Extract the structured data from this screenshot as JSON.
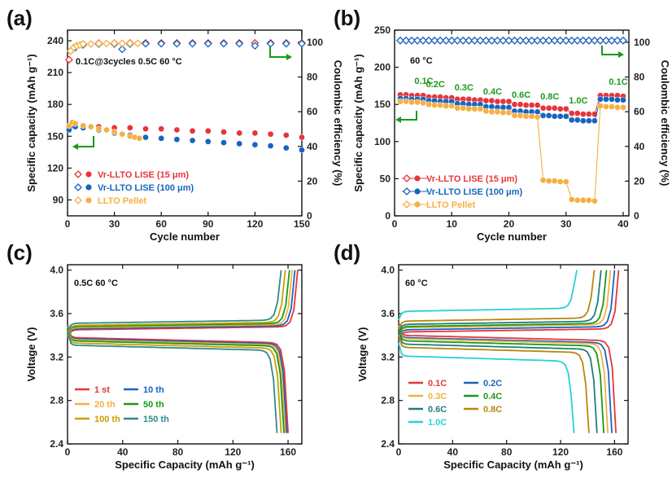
{
  "figure": {
    "colors": {
      "red": "#e8343b",
      "blue": "#1565c0",
      "orange": "#f5b041",
      "green": "#1a9a1a",
      "teal": "#2e8b8b",
      "gold": "#c8a000",
      "cyan": "#29d0d8",
      "olive": "#b8860b",
      "dteal": "#1e7f7f"
    }
  },
  "chart_data": [
    {
      "id": "a",
      "panel_label": "(a)",
      "type": "scatter",
      "xlabel": "Cycle number",
      "ylabel": "Specific capacity (mAh g⁻¹)",
      "y2label": "Coulombic efficiency (%)",
      "xlim": [
        0,
        150
      ],
      "ylim": [
        75,
        250
      ],
      "y2lim": [
        0,
        107
      ],
      "xticks": [
        0,
        30,
        60,
        90,
        120,
        150
      ],
      "yticks": [
        90,
        120,
        150,
        180,
        210,
        240
      ],
      "y2ticks": [
        0,
        20,
        40,
        60,
        80,
        100
      ],
      "annotation": "0.1C@3cycles  0.5C 60 °C",
      "legend": [
        "Vr-LLTO LISE (15 μm)",
        "Vr-LLTO LISE (100 μm)",
        "LLTO Pellet"
      ],
      "series": [
        {
          "name": "Vr-LLTO LISE (15 μm) capacity",
          "color": "red",
          "axis": "left",
          "line": false,
          "x": [
            1,
            3,
            5,
            10,
            20,
            30,
            40,
            50,
            60,
            70,
            80,
            90,
            100,
            110,
            120,
            130,
            140,
            150
          ],
          "y": [
            158,
            162,
            161,
            160,
            159,
            158,
            158,
            157,
            157,
            156,
            155,
            155,
            154,
            153,
            153,
            152,
            151,
            149
          ]
        },
        {
          "name": "Vr-LLTO LISE (100 μm) capacity",
          "color": "blue",
          "axis": "left",
          "line": false,
          "x": [
            1,
            3,
            5,
            10,
            20,
            30,
            40,
            50,
            60,
            70,
            80,
            90,
            100,
            110,
            120,
            130,
            140,
            150
          ],
          "y": [
            156,
            160,
            159,
            158,
            156,
            153,
            151,
            149,
            148,
            147,
            146,
            145,
            144,
            143,
            142,
            141,
            139,
            137
          ]
        },
        {
          "name": "LLTO Pellet capacity",
          "color": "orange",
          "axis": "left",
          "line": false,
          "x": [
            1,
            3,
            5,
            10,
            15,
            20,
            25,
            30,
            35,
            40,
            43,
            46
          ],
          "y": [
            160,
            163,
            162,
            160,
            159,
            157,
            156,
            154,
            152,
            150,
            149,
            148
          ]
        },
        {
          "name": "Vr-LLTO LISE (15 μm) CE",
          "color": "red",
          "axis": "right",
          "line": false,
          "hollow": true,
          "x": [
            1,
            3,
            6,
            10,
            20,
            30,
            40,
            50,
            60,
            70,
            80,
            90,
            100,
            110,
            120,
            130,
            140,
            150
          ],
          "y": [
            90,
            96,
            98,
            99,
            99.5,
            99.5,
            99.6,
            99.6,
            99.6,
            99.6,
            99.6,
            99.6,
            99.6,
            99.6,
            99.6,
            99.6,
            99.6,
            99.6
          ]
        },
        {
          "name": "Vr-LLTO LISE (100 μm) CE",
          "color": "blue",
          "axis": "right",
          "line": false,
          "hollow": true,
          "x": [
            2,
            5,
            10,
            20,
            30,
            35,
            40,
            50,
            60,
            70,
            80,
            90,
            100,
            110,
            120,
            130,
            140,
            150
          ],
          "y": [
            95,
            97,
            98.5,
            99,
            99,
            96,
            99,
            99.2,
            99.2,
            99.2,
            99.2,
            99.2,
            99.2,
            99.2,
            98,
            99.2,
            99.2,
            99.2
          ]
        },
        {
          "name": "LLTO Pellet CE",
          "color": "orange",
          "axis": "right",
          "line": false,
          "hollow": true,
          "x": [
            2,
            4,
            6,
            8,
            10,
            15,
            20,
            25,
            30,
            35,
            40,
            45
          ],
          "y": [
            95,
            97,
            98,
            98.5,
            99,
            99,
            99.3,
            99.3,
            99.4,
            99.4,
            99.4,
            99.4
          ]
        }
      ]
    },
    {
      "id": "b",
      "panel_label": "(b)",
      "type": "scatter",
      "xlabel": "Cycle number",
      "ylabel": "Specific capacity (mAh g⁻¹)",
      "y2label": "Coulombic efficiency (%)",
      "xlim": [
        0,
        41
      ],
      "ylim": [
        0,
        250
      ],
      "y2lim": [
        0,
        107
      ],
      "xticks": [
        0,
        10,
        20,
        30,
        40
      ],
      "yticks": [
        0,
        50,
        100,
        150,
        200,
        250
      ],
      "y2ticks": [
        0,
        20,
        40,
        60,
        80,
        100
      ],
      "annotation": "60 °C",
      "rates": [
        "0.1C",
        "0.2C",
        "0.3C",
        "0.4C",
        "0.6C",
        "0.8C",
        "1.0C",
        "0.1C"
      ],
      "legend": [
        "Vr-LLTO LISE (15 μm)",
        "Vr-LLTO LISE (100 μm)",
        "LLTO Pellet"
      ],
      "series": [
        {
          "name": "Vr-LLTO LISE (15 μm) capacity",
          "color": "red",
          "axis": "left",
          "line": true,
          "x": [
            1,
            2,
            3,
            4,
            5,
            6,
            7,
            8,
            9,
            10,
            11,
            12,
            13,
            14,
            15,
            16,
            17,
            18,
            19,
            20,
            21,
            22,
            23,
            24,
            25,
            26,
            27,
            28,
            29,
            30,
            31,
            32,
            33,
            34,
            35,
            36,
            37,
            38,
            39,
            40
          ],
          "y": [
            163,
            163,
            162,
            162,
            162,
            160,
            160,
            160,
            159,
            159,
            157,
            157,
            157,
            156,
            156,
            155,
            155,
            154,
            154,
            154,
            150,
            150,
            149,
            149,
            149,
            145,
            145,
            145,
            144,
            144,
            138,
            138,
            137,
            137,
            137,
            162,
            162,
            162,
            162,
            161
          ]
        },
        {
          "name": "Vr-LLTO LISE (100 μm) capacity",
          "color": "blue",
          "axis": "left",
          "line": true,
          "x": [
            1,
            2,
            3,
            4,
            5,
            6,
            7,
            8,
            9,
            10,
            11,
            12,
            13,
            14,
            15,
            16,
            17,
            18,
            19,
            20,
            21,
            22,
            23,
            24,
            25,
            26,
            27,
            28,
            29,
            30,
            31,
            32,
            33,
            34,
            35,
            36,
            37,
            38,
            39,
            40
          ],
          "y": [
            158,
            158,
            157,
            157,
            157,
            155,
            155,
            154,
            154,
            154,
            151,
            151,
            150,
            150,
            150,
            147,
            147,
            146,
            146,
            146,
            141,
            141,
            140,
            140,
            140,
            135,
            135,
            134,
            134,
            134,
            129,
            129,
            128,
            128,
            128,
            157,
            157,
            157,
            156,
            156
          ]
        },
        {
          "name": "LLTO Pellet capacity",
          "color": "orange",
          "axis": "left",
          "line": true,
          "x": [
            1,
            2,
            3,
            4,
            5,
            6,
            7,
            8,
            9,
            10,
            11,
            12,
            13,
            14,
            15,
            16,
            17,
            18,
            19,
            20,
            21,
            22,
            23,
            24,
            25,
            26,
            27,
            28,
            29,
            30,
            31,
            32,
            33,
            34,
            35,
            36,
            37,
            38,
            39,
            40
          ],
          "y": [
            154,
            154,
            153,
            153,
            152,
            150,
            149,
            149,
            148,
            148,
            145,
            145,
            144,
            144,
            144,
            141,
            140,
            140,
            139,
            139,
            135,
            135,
            134,
            134,
            133,
            48,
            47,
            47,
            46,
            46,
            22,
            21,
            21,
            21,
            20,
            148,
            147,
            147,
            146,
            146
          ]
        },
        {
          "name": "Vr-LLTO LISE (15 μm) CE",
          "color": "red",
          "axis": "right",
          "line": false,
          "hollow": true,
          "x": [
            1,
            2,
            3,
            4,
            5,
            6,
            7,
            8,
            9,
            10,
            11,
            12,
            13,
            14,
            15,
            16,
            17,
            18,
            19,
            20,
            21,
            22,
            23,
            24,
            25,
            26,
            27,
            28,
            29,
            30,
            31,
            32,
            33,
            34,
            35,
            36,
            37,
            38,
            39,
            40
          ],
          "y": [
            101,
            101,
            101,
            101,
            101,
            101,
            101,
            101,
            101,
            101,
            101,
            101,
            101,
            101,
            101,
            101,
            101,
            101,
            101,
            101,
            101,
            101,
            101,
            101,
            101,
            101,
            101,
            101,
            101,
            101,
            101,
            101,
            101,
            101,
            101,
            101,
            101,
            101,
            101,
            101
          ]
        },
        {
          "name": "Vr-LLTO LISE (100 μm) CE",
          "color": "blue",
          "axis": "right",
          "line": false,
          "hollow": true,
          "x": [
            1,
            2,
            3,
            4,
            5,
            6,
            7,
            8,
            9,
            10,
            11,
            12,
            13,
            14,
            15,
            16,
            17,
            18,
            19,
            20,
            21,
            22,
            23,
            24,
            25,
            26,
            27,
            28,
            29,
            30,
            31,
            32,
            33,
            34,
            35,
            36,
            37,
            38,
            39,
            40
          ],
          "y": [
            101,
            101,
            101,
            101,
            101,
            101,
            101,
            101,
            101,
            101,
            101,
            101,
            101,
            101,
            101,
            101,
            101,
            101,
            101,
            101,
            101,
            101,
            101,
            101,
            101,
            101,
            101,
            101,
            101,
            101,
            101,
            101,
            101,
            101,
            101,
            101,
            101,
            101,
            101,
            101
          ]
        }
      ]
    },
    {
      "id": "c",
      "panel_label": "(c)",
      "type": "line",
      "xlabel": "Specific Capacity (mAh g⁻¹)",
      "ylabel": "Voltage (V)",
      "xlim": [
        0,
        170
      ],
      "ylim": [
        2.4,
        4.05
      ],
      "xticks": [
        0,
        40,
        80,
        120,
        160
      ],
      "yticks": [
        2.4,
        2.8,
        3.2,
        3.6,
        4.0
      ],
      "annotation": "0.5C 60 °C",
      "legend": [
        "1 st",
        "10 th",
        "20 th",
        "50 th",
        "100 th",
        "150 th"
      ],
      "series": [
        {
          "name": "1 st",
          "color": "red",
          "charge_capacity": 167,
          "charge_plateau": 3.45,
          "discharge_capacity": 160,
          "discharge_plateau": 3.38
        },
        {
          "name": "10 th",
          "color": "blue",
          "charge_capacity": 165,
          "charge_plateau": 3.46,
          "discharge_capacity": 159,
          "discharge_plateau": 3.37
        },
        {
          "name": "20 th",
          "color": "orange",
          "charge_capacity": 163,
          "charge_plateau": 3.47,
          "discharge_capacity": 158,
          "discharge_plateau": 3.36
        },
        {
          "name": "50 th",
          "color": "green",
          "charge_capacity": 161,
          "charge_plateau": 3.48,
          "discharge_capacity": 157,
          "discharge_plateau": 3.35
        },
        {
          "name": "100 th",
          "color": "gold",
          "charge_capacity": 158,
          "charge_plateau": 3.49,
          "discharge_capacity": 155,
          "discharge_plateau": 3.33
        },
        {
          "name": "150 th",
          "color": "teal",
          "charge_capacity": 155,
          "charge_plateau": 3.51,
          "discharge_capacity": 152,
          "discharge_plateau": 3.31
        }
      ]
    },
    {
      "id": "d",
      "panel_label": "(d)",
      "type": "line",
      "xlabel": "Specific Capacity (mAh g⁻¹)",
      "ylabel": "Voltage (V)",
      "xlim": [
        0,
        170
      ],
      "ylim": [
        2.4,
        4.05
      ],
      "xticks": [
        0,
        40,
        80,
        120,
        160
      ],
      "yticks": [
        2.4,
        2.8,
        3.2,
        3.6,
        4.0
      ],
      "annotation": "60 °C",
      "legend": [
        "0.1C",
        "0.2C",
        "0.3C",
        "0.4C",
        "0.6C",
        "0.8C",
        "1.0C"
      ],
      "series": [
        {
          "name": "0.1C",
          "color": "red",
          "charge_capacity": 163,
          "charge_plateau": 3.43,
          "discharge_capacity": 161,
          "discharge_plateau": 3.4
        },
        {
          "name": "0.2C",
          "color": "blue",
          "charge_capacity": 160,
          "charge_plateau": 3.45,
          "discharge_capacity": 158,
          "discharge_plateau": 3.38
        },
        {
          "name": "0.3C",
          "color": "orange",
          "charge_capacity": 157,
          "charge_plateau": 3.47,
          "discharge_capacity": 155,
          "discharge_plateau": 3.37
        },
        {
          "name": "0.4C",
          "color": "green",
          "charge_capacity": 154,
          "charge_plateau": 3.48,
          "discharge_capacity": 152,
          "discharge_plateau": 3.35
        },
        {
          "name": "0.6C",
          "color": "dteal",
          "charge_capacity": 150,
          "charge_plateau": 3.5,
          "discharge_capacity": 147,
          "discharge_plateau": 3.32
        },
        {
          "name": "0.8C",
          "color": "olive",
          "charge_capacity": 145,
          "charge_plateau": 3.53,
          "discharge_capacity": 141,
          "discharge_plateau": 3.29
        },
        {
          "name": "1.0C",
          "color": "cyan",
          "charge_capacity": 132,
          "charge_plateau": 3.62,
          "discharge_capacity": 130,
          "discharge_plateau": 3.21
        }
      ]
    }
  ]
}
